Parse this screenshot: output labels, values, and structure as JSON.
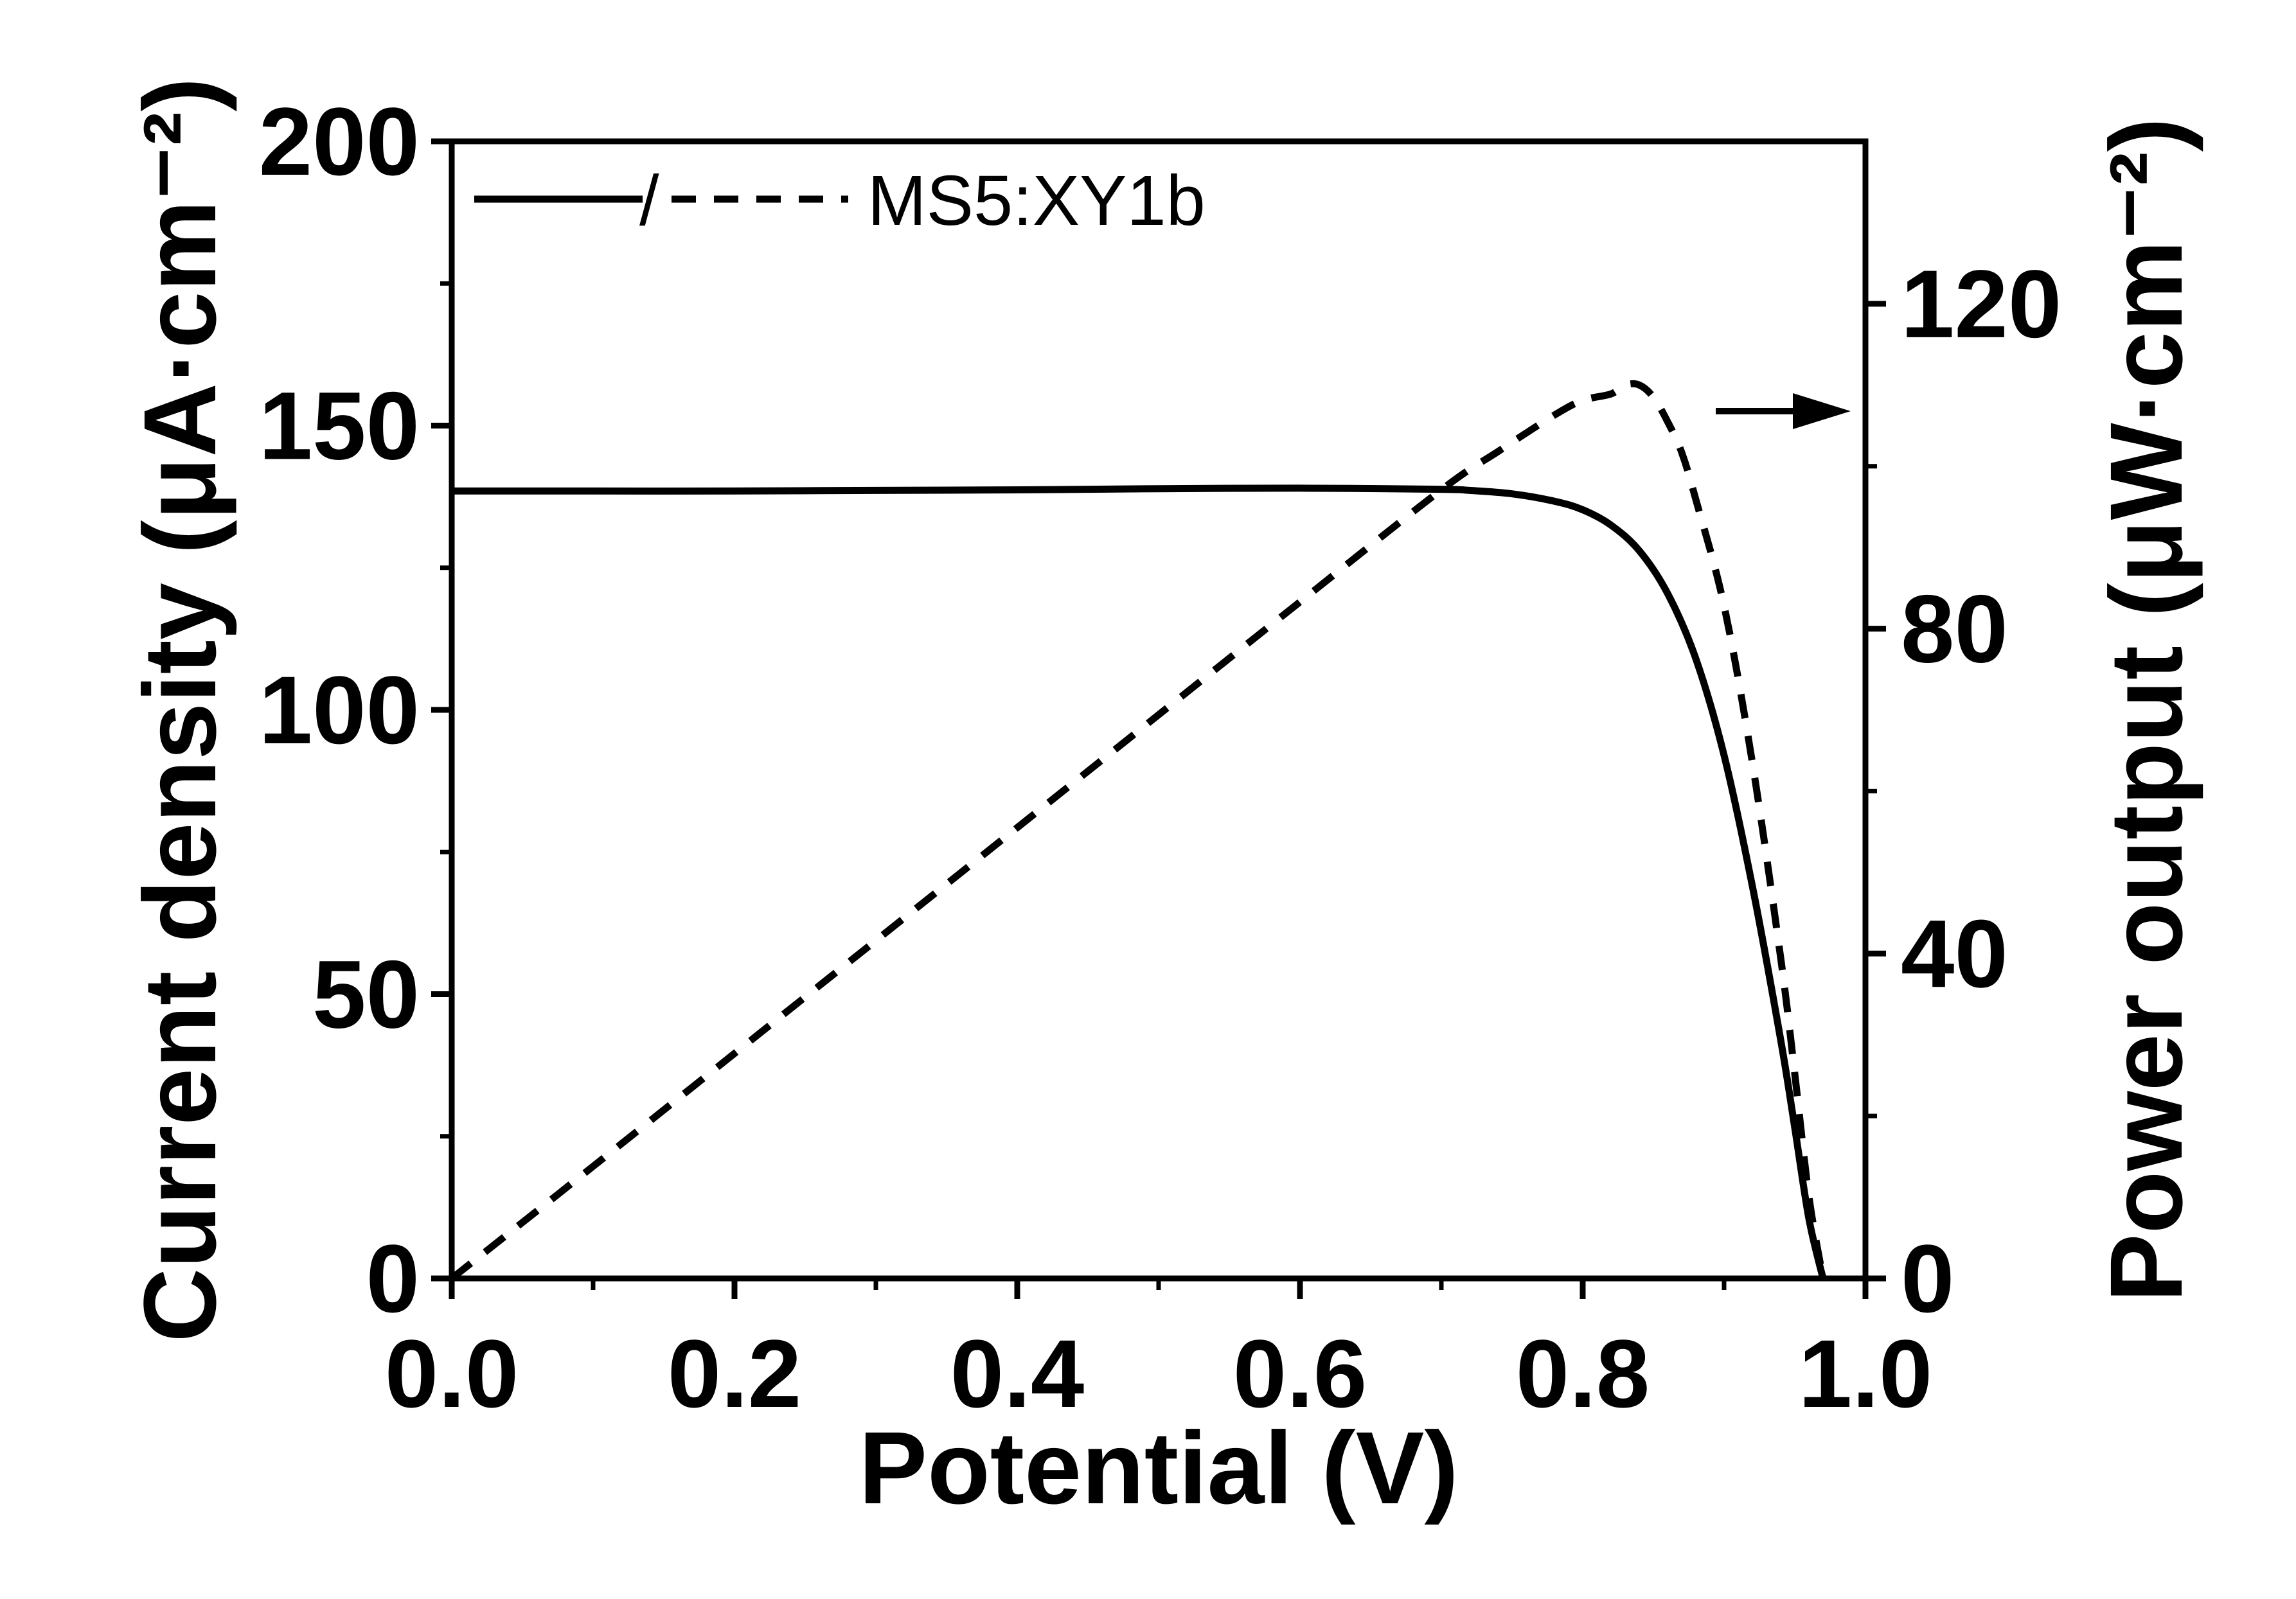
{
  "chart_data": {
    "type": "line",
    "title": "",
    "xlabel": "Potential (V)",
    "ylabel": "Current density (μA·cm⁻²)",
    "y2label": "Power output (μW·cm⁻²)",
    "xlim": [
      0,
      1.0
    ],
    "ylim": [
      0,
      200
    ],
    "y2lim": [
      0,
      140
    ],
    "xticks": [
      "0.0",
      "0.2",
      "0.4",
      "0.6",
      "0.8",
      "1.0"
    ],
    "yticks": [
      "0",
      "50",
      "100",
      "150",
      "200"
    ],
    "y2ticks": [
      "0",
      "40",
      "80",
      "120"
    ],
    "grid": false,
    "legend": {
      "placement": "top-left",
      "label": "MS5:XY1b",
      "separator": "/"
    },
    "annotation": {
      "type": "arrow",
      "direction": "right",
      "meaning": "dashed curve refers to right axis"
    },
    "series": [
      {
        "axis": "left",
        "style": "solid",
        "color": "#000000",
        "x": [
          0.0,
          0.1,
          0.2,
          0.3,
          0.4,
          0.5,
          0.6,
          0.7,
          0.72,
          0.75,
          0.78,
          0.8,
          0.82,
          0.84,
          0.86,
          0.88,
          0.9,
          0.92,
          0.94,
          0.95,
          0.96,
          0.97
        ],
        "y": [
          138.5,
          138.5,
          138.5,
          138.6,
          138.7,
          138.9,
          139.0,
          138.8,
          138.6,
          138.0,
          136.7,
          135.2,
          132.5,
          128.0,
          120.5,
          109.0,
          92.0,
          69.0,
          42.0,
          26.5,
          10.5,
          0
        ]
      },
      {
        "axis": "right",
        "style": "dashed",
        "color": "#000000",
        "x": [
          0.0,
          0.1,
          0.2,
          0.3,
          0.4,
          0.5,
          0.6,
          0.7,
          0.74,
          0.78,
          0.8,
          0.82,
          0.83,
          0.84,
          0.85,
          0.86,
          0.87,
          0.88,
          0.9,
          0.92,
          0.94,
          0.95,
          0.96,
          0.97
        ],
        "y": [
          0,
          13.8,
          27.7,
          41.6,
          55.5,
          69.4,
          83.3,
          97.1,
          101.8,
          106.3,
          108.1,
          108.9,
          110.0,
          110.0,
          108.5,
          105.5,
          101.7,
          95.9,
          82.8,
          63.5,
          39.5,
          25.2,
          10.1,
          0
        ]
      }
    ]
  }
}
